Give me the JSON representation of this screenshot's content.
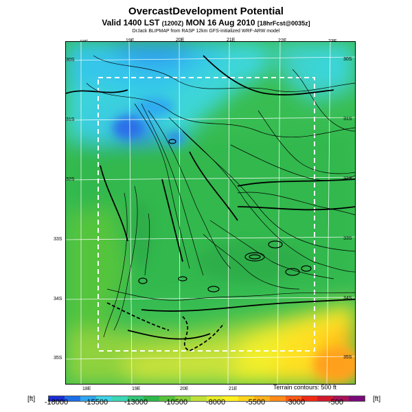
{
  "title": {
    "main": "OvercastDevelopment Potential",
    "valid_prefix": "Valid 1400 LST",
    "valid_z": "(1200Z)",
    "valid_date": "MON 16 Aug 2010",
    "fcst": "[18hrFcst@0035z]",
    "credit": "DrJack BLIPMAP from RASP 12km GFS-initialized WRF-ARW model"
  },
  "map": {
    "top_lon_labels": [
      "18E",
      "19E",
      "20E",
      "21E",
      "22E",
      "23E"
    ],
    "bottom_lon_labels": [
      "18E",
      "19E",
      "20E",
      "21E"
    ],
    "left_lat_labels": [
      "30S",
      "31S",
      "32S",
      "33S",
      "34S",
      "35S"
    ],
    "right_lat_labels": [
      "30S",
      "31S",
      "32S",
      "33S",
      "34S",
      "35S"
    ],
    "terrain_note": "Terrain contours: 500 ft"
  },
  "colorbar": {
    "unit_left": "[ft]",
    "unit_right": "[ft]",
    "tick_labels": [
      "-18000",
      "-15500",
      "-13000",
      "-10500",
      "-8000",
      "-5500",
      "-3000",
      "-500"
    ],
    "colors": [
      "#1a2fd6",
      "#1e6ee8",
      "#2fa6ef",
      "#3fd2e6",
      "#3cd6b4",
      "#32c878",
      "#2fb84a",
      "#56c23a",
      "#8cd23c",
      "#bfe038",
      "#e8ec2a",
      "#fff020",
      "#ffd41c",
      "#ffb21a",
      "#ff8a18",
      "#ff5a16",
      "#f02a14",
      "#d01a2c",
      "#a8125a",
      "#7a0a7a"
    ]
  }
}
